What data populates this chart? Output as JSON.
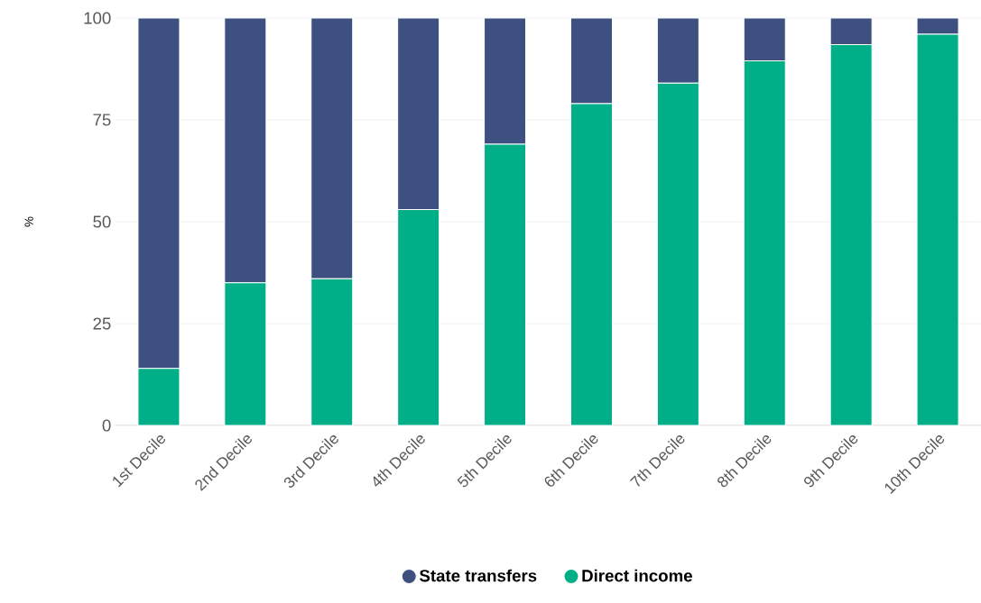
{
  "chart_data": {
    "type": "bar",
    "stacked": true,
    "ylabel": "%",
    "categories": [
      "1st Decile",
      "2nd Decile",
      "3rd Decile",
      "4th Decile",
      "5th Decile",
      "6th Decile",
      "7th Decile",
      "8th Decile",
      "9th Decile",
      "10th Decile"
    ],
    "series": [
      {
        "name": "Direct income",
        "color": "#00ae87",
        "values": [
          14,
          35,
          36,
          53,
          69,
          79,
          84,
          89.5,
          93.5,
          96
        ]
      },
      {
        "name": "State transfers",
        "color": "#3d5080",
        "values": [
          86,
          65,
          64,
          47,
          31,
          21,
          16,
          10.5,
          6.5,
          4
        ]
      }
    ],
    "ylim": [
      0,
      100
    ],
    "yticks": [
      0,
      25,
      50,
      75,
      100
    ],
    "grid": "y",
    "legend": "bottom"
  }
}
